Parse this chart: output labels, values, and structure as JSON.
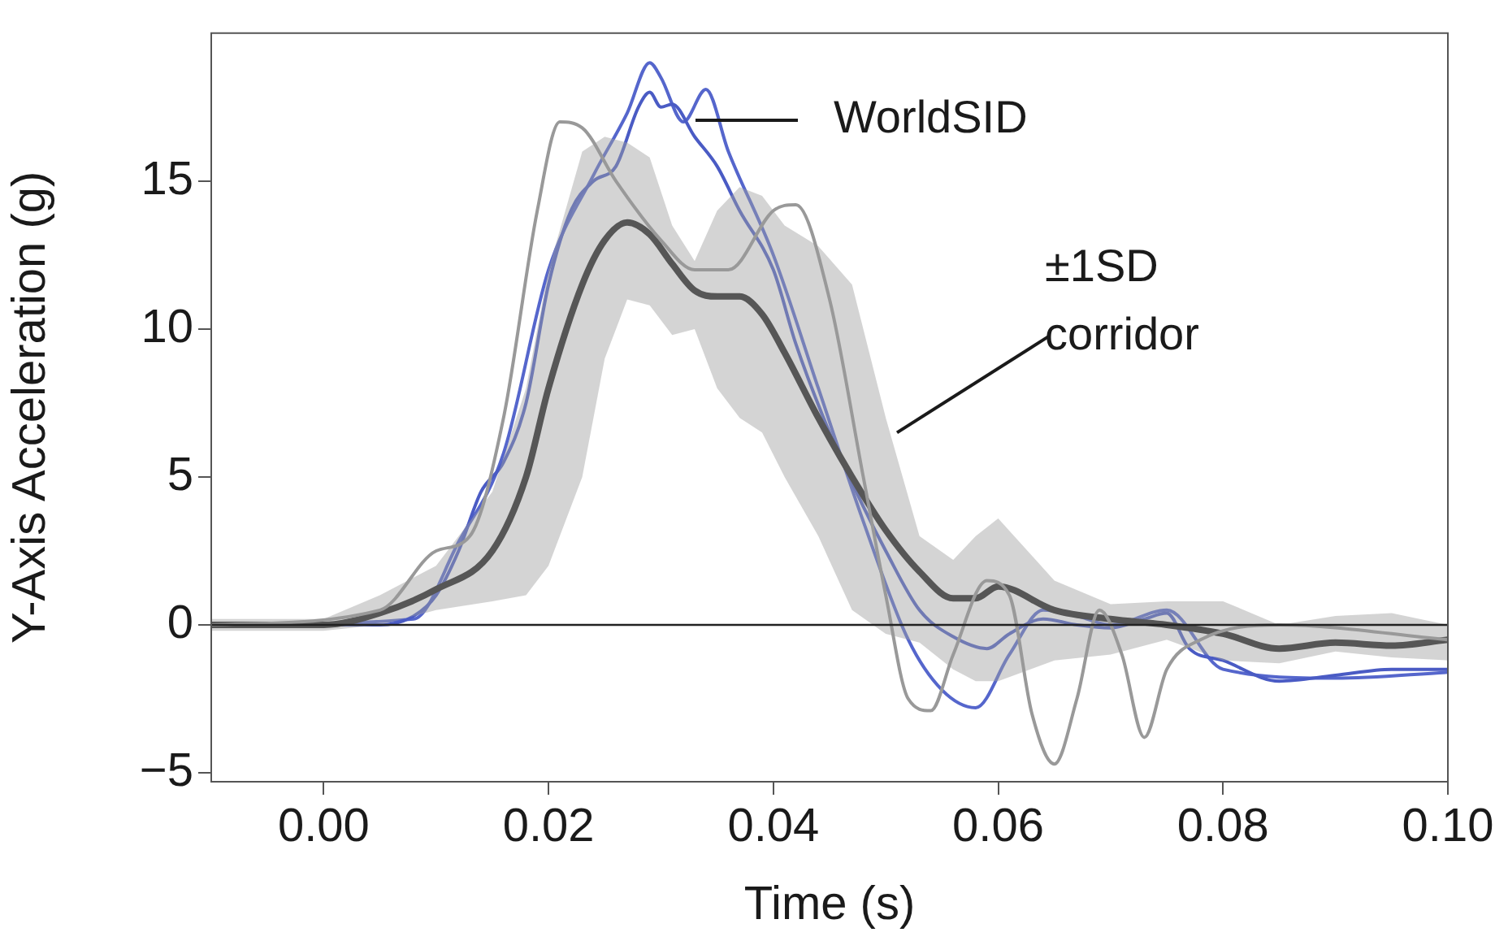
{
  "chart_data": {
    "type": "line",
    "xlabel": "Time (s)",
    "ylabel": "Y-Axis Acceleration (g)",
    "xlim": [
      -0.01,
      0.1
    ],
    "xticks": [
      {
        "value": 0,
        "label": "0.00"
      },
      {
        "value": 0.02,
        "label": "0.02"
      },
      {
        "value": 0.04,
        "label": "0.04"
      },
      {
        "value": 0.06,
        "label": "0.06"
      },
      {
        "value": 0.08,
        "label": "0.08"
      },
      {
        "value": 0.1,
        "label": "0.10"
      }
    ],
    "ylim": [
      -5.3,
      20
    ],
    "yticks": [
      {
        "value": -5,
        "label": "−5"
      },
      0,
      5,
      10,
      15
    ],
    "grid": false,
    "legend": false,
    "marker": "none",
    "line_style": "solid",
    "ref_lines": [
      {
        "axis": "y",
        "value": 0,
        "color": "#222222"
      }
    ],
    "annotations": [
      "WorldSID",
      {
        "text": "±1SD corridor",
        "x": 0.051,
        "y": 6.5
      }
    ],
    "series": [
      {
        "color": "#999999",
        "x": [
          -0.01,
          0.005,
          0.01,
          0.013,
          0.016,
          0.019,
          0.021,
          0.023,
          0.026,
          0.03,
          0.033,
          0.036,
          0.04,
          0.042,
          0.045,
          0.048,
          0.05,
          0.052,
          0.054,
          0.056,
          0.059,
          0.061,
          0.063,
          0.065,
          0.067,
          0.069,
          0.071,
          0.073,
          0.075,
          0.078,
          0.085,
          0.1
        ],
        "values": [
          0,
          0.5,
          2.5,
          3,
          7,
          14,
          17,
          16.8,
          15,
          13,
          12,
          12,
          14,
          14.2,
          11,
          5,
          1,
          -2.5,
          -2.9,
          -1,
          1.5,
          1,
          -3,
          -4.7,
          -2.5,
          0.5,
          -1,
          -3.8,
          -1.5,
          -0.5,
          0,
          -0.5
        ]
      },
      {
        "color": "#1a1a1a",
        "x": [
          -0.01,
          0,
          0.005,
          0.01,
          0.015,
          0.018,
          0.02,
          0.023,
          0.025,
          0.027,
          0.029,
          0.031,
          0.033,
          0.035,
          0.037,
          0.039,
          0.041,
          0.044,
          0.047,
          0.05,
          0.053,
          0.056,
          0.058,
          0.06,
          0.065,
          0.07,
          0.075,
          0.08,
          0.085,
          0.09,
          0.095,
          0.1
        ],
        "values": [
          0,
          0,
          0.4,
          1.2,
          2.5,
          5,
          8,
          11.5,
          13,
          13.6,
          13.2,
          12.2,
          11.3,
          11.1,
          11.1,
          10.5,
          9.2,
          7,
          5,
          3.2,
          1.8,
          0.9,
          0.9,
          1.3,
          0.5,
          0.2,
          0,
          -0.3,
          -0.8,
          -0.6,
          -0.7,
          -0.5
        ],
        "lower": [
          -0.2,
          -0.2,
          0,
          0.5,
          0.8,
          1,
          2,
          5,
          9,
          11,
          10.8,
          9.8,
          10,
          8,
          7,
          6.5,
          5,
          3,
          0.5,
          -0.3,
          -0.6,
          -1.5,
          -1.9,
          -1.9,
          -1.2,
          -1,
          -0.5,
          -1.2,
          -1.3,
          -0.9,
          -1.1,
          -1.2
        ],
        "upper": [
          0.2,
          0.2,
          1,
          2,
          4.5,
          8,
          12,
          16,
          16.5,
          16.3,
          15.8,
          13.5,
          12.3,
          14,
          14.8,
          14.5,
          13.5,
          12.8,
          11.5,
          7,
          3,
          2.2,
          3,
          3.6,
          1.5,
          0.7,
          0.8,
          0.8,
          0,
          0.3,
          0.4,
          0
        ]
      },
      {
        "color": "#4a5bc4",
        "x": [
          -0.01,
          0.005,
          0.008,
          0.01,
          0.012,
          0.014,
          0.016,
          0.018,
          0.02,
          0.022,
          0.024,
          0.026,
          0.028,
          0.029,
          0.03,
          0.031,
          0.033,
          0.035,
          0.037,
          0.04,
          0.042,
          0.045,
          0.048,
          0.05,
          0.053,
          0.056,
          0.059,
          0.061,
          0.064,
          0.067,
          0.07,
          0.073,
          0.075,
          0.077,
          0.08,
          0.085,
          0.09,
          0.095,
          0.1
        ],
        "values": [
          0,
          0,
          0.3,
          1,
          2.5,
          4.5,
          5.5,
          7.5,
          11.5,
          14,
          15,
          15.5,
          17.5,
          18,
          17.5,
          17.6,
          16.5,
          15.5,
          14,
          12,
          9.5,
          6.5,
          4,
          2.5,
          0.5,
          -0.4,
          -0.8,
          -0.3,
          0.2,
          0,
          -0.1,
          0.2,
          0.4,
          -0.8,
          -1.2,
          -1.9,
          -1.7,
          -1.5,
          -1.5
        ]
      },
      {
        "color": "#5566cc",
        "x": [
          -0.01,
          0.008,
          0.012,
          0.016,
          0.02,
          0.024,
          0.027,
          0.029,
          0.03,
          0.032,
          0.034,
          0.036,
          0.04,
          0.044,
          0.048,
          0.052,
          0.055,
          0.058,
          0.061,
          0.064,
          0.067,
          0.07,
          0.075,
          0.08,
          0.09,
          0.1
        ],
        "values": [
          0,
          0.2,
          2.8,
          5.8,
          12,
          15.2,
          17.3,
          19,
          18.5,
          17,
          18.1,
          16,
          12.5,
          8,
          3.5,
          -0.5,
          -2.2,
          -2.8,
          -1,
          0.5,
          0.3,
          0,
          0.5,
          -1.5,
          -1.8,
          -1.6
        ]
      }
    ]
  }
}
